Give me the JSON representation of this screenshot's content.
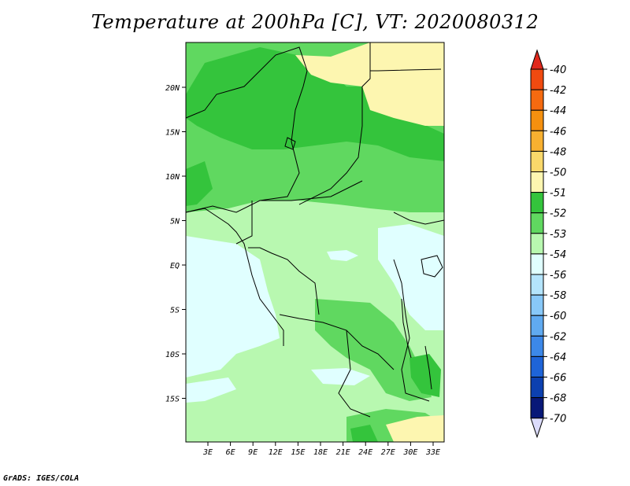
{
  "title": "Temperature at 200hPa [C], VT: 2020080312",
  "credit": "GrADS: IGES/COLA",
  "map": {
    "lon_ticks": [
      "3E",
      "6E",
      "9E",
      "12E",
      "15E",
      "18E",
      "21E",
      "24E",
      "27E",
      "30E",
      "33E"
    ],
    "lat_ticks": [
      "20N",
      "15N",
      "10N",
      "5N",
      "EQ",
      "5S",
      "10S",
      "15S"
    ]
  },
  "colorbar": {
    "labels": [
      "-40",
      "-42",
      "-44",
      "-46",
      "-48",
      "-50",
      "-51",
      "-52",
      "-53",
      "-54",
      "-56",
      "-58",
      "-60",
      "-62",
      "-64",
      "-66",
      "-68",
      "-70"
    ],
    "colors": {
      "above_-40": "#e0281c",
      "-40_-42": "#f04a10",
      "-42_-44": "#f56a10",
      "-44_-46": "#f5900f",
      "-46_-48": "#f8b030",
      "-48_-50": "#fad86a",
      "-50_-51": "#fdf6b0",
      "-51_-52": "#34c43c",
      "-52_-53": "#60d860",
      "-53_-54": "#b8f8b0",
      "-54_-56": "#e0ffff",
      "-56_-58": "#b4e4fc",
      "-58_-60": "#88c8f8",
      "-60_-62": "#60aaf0",
      "-62_-64": "#3c88e8",
      "-64_-66": "#1e64d8",
      "-66_-68": "#0c40b0",
      "-68_-70": "#081878",
      "below_-70": "#dcdcfc"
    }
  },
  "colors": {
    "yellow": "#fdf6b0",
    "dark_green": "#34c43c",
    "green": "#60d860",
    "light_green": "#b8f8b0",
    "pale_cyan": "#e0ffff"
  }
}
